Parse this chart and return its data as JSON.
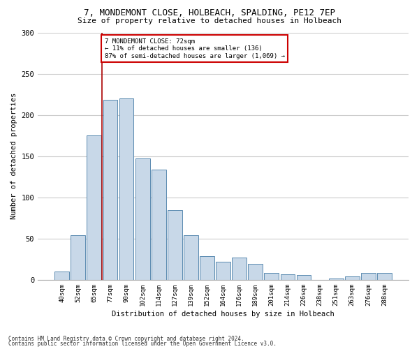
{
  "title_line1": "7, MONDEMONT CLOSE, HOLBEACH, SPALDING, PE12 7EP",
  "title_line2": "Size of property relative to detached houses in Holbeach",
  "xlabel": "Distribution of detached houses by size in Holbeach",
  "ylabel": "Number of detached properties",
  "footnote1": "Contains HM Land Registry data © Crown copyright and database right 2024.",
  "footnote2": "Contains public sector information licensed under the Open Government Licence v3.0.",
  "bar_labels": [
    "40sqm",
    "52sqm",
    "65sqm",
    "77sqm",
    "90sqm",
    "102sqm",
    "114sqm",
    "127sqm",
    "139sqm",
    "152sqm",
    "164sqm",
    "176sqm",
    "189sqm",
    "201sqm",
    "214sqm",
    "226sqm",
    "238sqm",
    "251sqm",
    "263sqm",
    "276sqm",
    "288sqm"
  ],
  "bar_values": [
    10,
    54,
    175,
    218,
    220,
    147,
    134,
    85,
    54,
    29,
    22,
    27,
    19,
    8,
    7,
    6,
    0,
    2,
    4,
    8,
    8
  ],
  "bar_color": "#c8d8e8",
  "bar_edge_color": "#5a8ab0",
  "vline_x": 2.5,
  "vline_color": "#aa0000",
  "annotation_text": "7 MONDEMONT CLOSE: 72sqm\n← 11% of detached houses are smaller (136)\n87% of semi-detached houses are larger (1,069) →",
  "annotation_box_color": "white",
  "annotation_box_edge_color": "#cc0000",
  "ylim": [
    0,
    300
  ],
  "yticks": [
    0,
    50,
    100,
    150,
    200,
    250,
    300
  ],
  "grid_color": "#cccccc",
  "bg_color": "white"
}
